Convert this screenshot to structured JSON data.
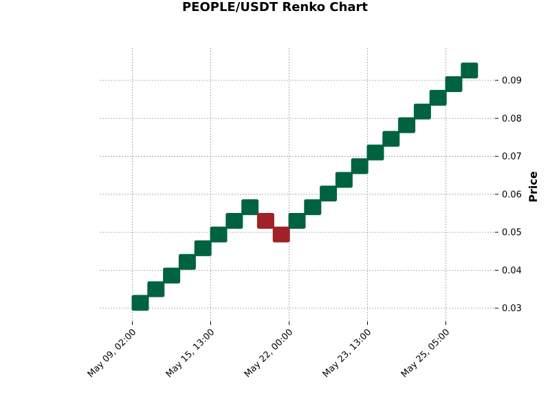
{
  "chart_data": {
    "type": "renko",
    "title": "PEOPLE/USDT Renko Chart",
    "ylabel": "Price",
    "xlabel": "",
    "grid": true,
    "y_axis_side": "right",
    "ylim": [
      0.0265,
      0.0985
    ],
    "y_ticks": [
      0.03,
      0.04,
      0.05,
      0.06,
      0.07,
      0.08,
      0.09
    ],
    "y_tick_labels": [
      "0.03",
      "0.04",
      "0.05",
      "0.06",
      "0.07",
      "0.08",
      "0.09"
    ],
    "x_ticks": [
      0,
      5,
      10,
      15,
      20
    ],
    "x_tick_labels": [
      "May 09, 02:00",
      "May 15, 13:00",
      "May 22, 00:00",
      "May 23, 13:00",
      "May 25, 05:00"
    ],
    "brick_size": 0.0036,
    "colors": {
      "up": "#006340",
      "down": "#a02128"
    },
    "bricks": [
      {
        "index": 0,
        "low": 0.0296,
        "high": 0.0332,
        "direction": "up"
      },
      {
        "index": 1,
        "low": 0.0332,
        "high": 0.0368,
        "direction": "up"
      },
      {
        "index": 2,
        "low": 0.0368,
        "high": 0.0404,
        "direction": "up"
      },
      {
        "index": 3,
        "low": 0.0404,
        "high": 0.044,
        "direction": "up"
      },
      {
        "index": 4,
        "low": 0.044,
        "high": 0.0476,
        "direction": "up"
      },
      {
        "index": 5,
        "low": 0.0476,
        "high": 0.0512,
        "direction": "up"
      },
      {
        "index": 6,
        "low": 0.0512,
        "high": 0.0548,
        "direction": "up"
      },
      {
        "index": 7,
        "low": 0.0548,
        "high": 0.0584,
        "direction": "up"
      },
      {
        "index": 8,
        "low": 0.0512,
        "high": 0.0548,
        "direction": "down"
      },
      {
        "index": 9,
        "low": 0.0476,
        "high": 0.0512,
        "direction": "down"
      },
      {
        "index": 10,
        "low": 0.0512,
        "high": 0.0548,
        "direction": "up"
      },
      {
        "index": 11,
        "low": 0.0548,
        "high": 0.0584,
        "direction": "up"
      },
      {
        "index": 12,
        "low": 0.0584,
        "high": 0.062,
        "direction": "up"
      },
      {
        "index": 13,
        "low": 0.062,
        "high": 0.0656,
        "direction": "up"
      },
      {
        "index": 14,
        "low": 0.0656,
        "high": 0.0692,
        "direction": "up"
      },
      {
        "index": 15,
        "low": 0.0692,
        "high": 0.0728,
        "direction": "up"
      },
      {
        "index": 16,
        "low": 0.0728,
        "high": 0.0764,
        "direction": "up"
      },
      {
        "index": 17,
        "low": 0.0764,
        "high": 0.08,
        "direction": "up"
      },
      {
        "index": 18,
        "low": 0.08,
        "high": 0.0836,
        "direction": "up"
      },
      {
        "index": 19,
        "low": 0.0836,
        "high": 0.0872,
        "direction": "up"
      },
      {
        "index": 20,
        "low": 0.0872,
        "high": 0.0908,
        "direction": "up"
      },
      {
        "index": 21,
        "low": 0.0908,
        "high": 0.0944,
        "direction": "up"
      }
    ]
  }
}
